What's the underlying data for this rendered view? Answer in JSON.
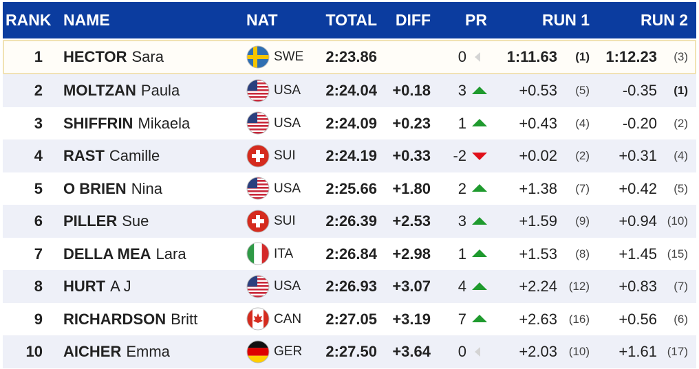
{
  "table": {
    "header": [
      "RANK",
      "NAME",
      "NAT",
      "TOTAL",
      "DIFF",
      "PR",
      "RUN 1",
      "RUN 2"
    ],
    "rows": [
      {
        "rank": 1,
        "last_name": "HECTOR",
        "first_name": "Sara",
        "nat": "SWE",
        "total": "2:23.86",
        "pr": 0,
        "trend": "same",
        "run1": "1:11.63",
        "run1_rank": "(1)",
        "run2": "1:12.23",
        "run2_rank": "(3)",
        "leader": true,
        "run1_rank_bold": true
      },
      {
        "rank": 2,
        "last_name": "MOLTZAN",
        "first_name": "Paula",
        "nat": "USA",
        "total": "2:24.04",
        "diff": "+0.18",
        "pr": 3,
        "trend": "up",
        "run1": "+0.53",
        "run1_rank": "(5)",
        "run2": "-0.35",
        "run2_rank": "(1)",
        "run2_rank_bold": true
      },
      {
        "rank": 3,
        "last_name": "SHIFFRIN",
        "first_name": "Mikaela",
        "nat": "USA",
        "total": "2:24.09",
        "diff": "+0.23",
        "pr": 1,
        "trend": "up",
        "run1": "+0.43",
        "run1_rank": "(4)",
        "run2": "-0.20",
        "run2_rank": "(2)"
      },
      {
        "rank": 4,
        "last_name": "RAST",
        "first_name": "Camille",
        "nat": "SUI",
        "total": "2:24.19",
        "diff": "+0.33",
        "pr": -2,
        "trend": "down",
        "run1": "+0.02",
        "run1_rank": "(2)",
        "run2": "+0.31",
        "run2_rank": "(4)"
      },
      {
        "rank": 5,
        "last_name": "O BRIEN",
        "first_name": "Nina",
        "nat": "USA",
        "total": "2:25.66",
        "diff": "+1.80",
        "pr": 2,
        "trend": "up",
        "run1": "+1.38",
        "run1_rank": "(7)",
        "run2": "+0.42",
        "run2_rank": "(5)"
      },
      {
        "rank": 6,
        "last_name": "PILLER",
        "first_name": "Sue",
        "nat": "SUI",
        "total": "2:26.39",
        "diff": "+2.53",
        "pr": 3,
        "trend": "up",
        "run1": "+1.59",
        "run1_rank": "(9)",
        "run2": "+0.94",
        "run2_rank": "(10)"
      },
      {
        "rank": 7,
        "last_name": "DELLA MEA",
        "first_name": "Lara",
        "nat": "ITA",
        "total": "2:26.84",
        "diff": "+2.98",
        "pr": 1,
        "trend": "up",
        "run1": "+1.53",
        "run1_rank": "(8)",
        "run2": "+1.45",
        "run2_rank": "(15)"
      },
      {
        "rank": 8,
        "last_name": "HURT",
        "first_name": "A J",
        "nat": "USA",
        "total": "2:26.93",
        "diff": "+3.07",
        "pr": 4,
        "trend": "up",
        "run1": "+2.24",
        "run1_rank": "(12)",
        "run2": "+0.83",
        "run2_rank": "(7)"
      },
      {
        "rank": 9,
        "last_name": "RICHARDSON",
        "first_name": "Britt",
        "nat": "CAN",
        "total": "2:27.05",
        "diff": "+3.19",
        "pr": 7,
        "trend": "up",
        "run1": "+2.63",
        "run1_rank": "(16)",
        "run2": "+0.56",
        "run2_rank": "(6)"
      },
      {
        "rank": 10,
        "last_name": "AICHER",
        "first_name": "Emma",
        "nat": "GER",
        "total": "2:27.50",
        "diff": "+3.64",
        "pr": 0,
        "trend": "same",
        "run1": "+2.03",
        "run1_rank": "(10)",
        "run2": "+1.61",
        "run2_rank": "(17)"
      }
    ]
  }
}
